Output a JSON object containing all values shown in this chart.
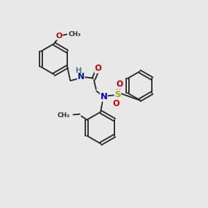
{
  "background_color": "#e8e8e8",
  "bond_color": "#2a2a2a",
  "atom_colors": {
    "N": "#0000cc",
    "O": "#cc0000",
    "S": "#aaaa00",
    "H": "#448888",
    "C": "#2a2a2a"
  },
  "figsize": [
    3.0,
    3.0
  ],
  "dpi": 100
}
